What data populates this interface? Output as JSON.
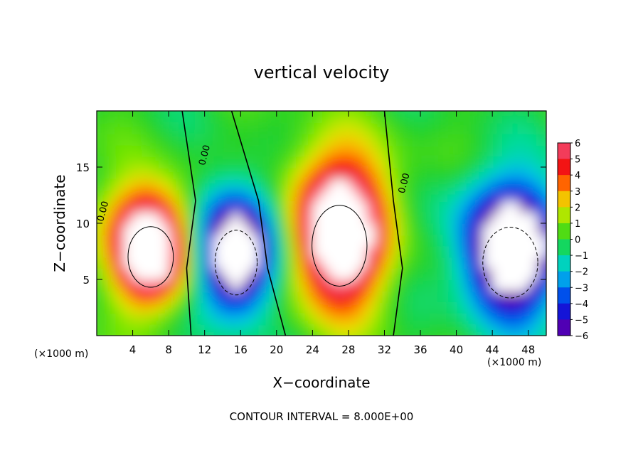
{
  "chart_data": {
    "type": "heatmap",
    "title": "vertical velocity",
    "xlabel": "X−coordinate",
    "ylabel": "Z−coordinate",
    "x_unit_left": "(×1000 m)",
    "x_unit_right": "(×1000 m)",
    "footer": "CONTOUR INTERVAL = 8.000E+00",
    "xlim": [
      0,
      50
    ],
    "ylim": [
      0,
      20
    ],
    "xticks": [
      4,
      8,
      12,
      16,
      20,
      24,
      28,
      32,
      36,
      40,
      44,
      48
    ],
    "xtick_labels": [
      "4",
      "8",
      "12",
      "16",
      "20",
      "24",
      "28",
      "32",
      "36",
      "40",
      "44",
      "48"
    ],
    "yticks": [
      5,
      10,
      15
    ],
    "ytick_labels": [
      "5",
      "10",
      "15"
    ],
    "colorbar": {
      "min": -6,
      "max": 6,
      "ticks": [
        6,
        5,
        4,
        3,
        2,
        1,
        0,
        -1,
        -2,
        -3,
        -4,
        -5,
        -6
      ],
      "tick_labels": [
        "6",
        "5",
        "4",
        "3",
        "2",
        "1",
        "0",
        "−1",
        "−2",
        "−3",
        "−4",
        "−5",
        "−6"
      ]
    },
    "contour_labels": [
      "0.00",
      "0.00",
      "0.00"
    ],
    "features": [
      {
        "kind": "updraft",
        "x": 6,
        "z": 7,
        "value": 6,
        "sx": 2.8,
        "sz": 3.0
      },
      {
        "kind": "downdraft",
        "x": 15.5,
        "z": 6.5,
        "value": -6,
        "sx": 2.6,
        "sz": 3.2
      },
      {
        "kind": "updraft",
        "x": 27,
        "z": 8,
        "value": 6,
        "sx": 3.4,
        "sz": 4.0
      },
      {
        "kind": "downdraft",
        "x": 46,
        "z": 6.5,
        "value": -6,
        "sx": 3.4,
        "sz": 3.5
      }
    ],
    "grid": false,
    "legend": "colorbar-right"
  }
}
